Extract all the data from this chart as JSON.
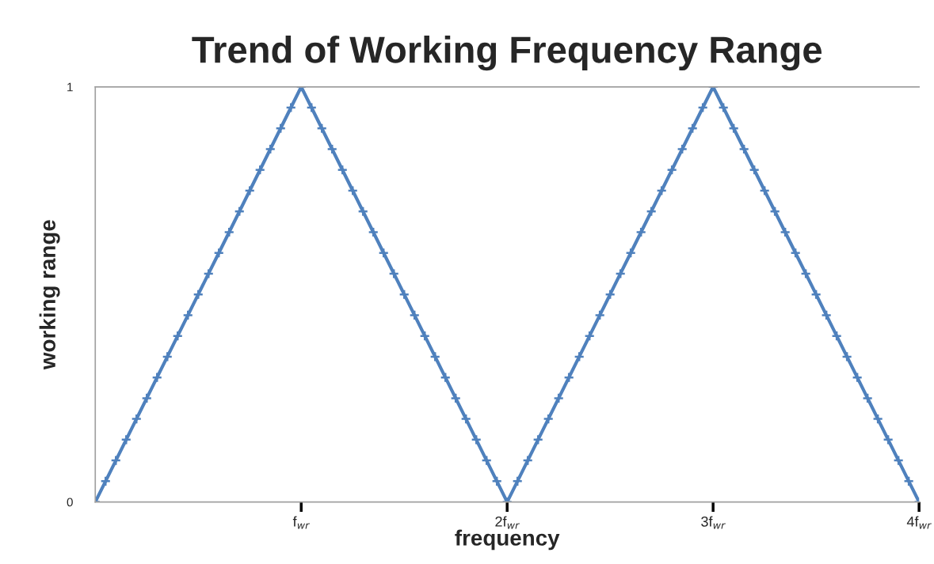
{
  "chart_data": {
    "type": "line",
    "title": "Trend of Working Frequency Range",
    "xlabel": "frequency",
    "ylabel": "working range",
    "x": [
      0,
      0.05,
      0.1,
      0.15,
      0.2,
      0.25,
      0.3,
      0.35,
      0.4,
      0.45,
      0.5,
      0.55,
      0.6,
      0.65,
      0.7,
      0.75,
      0.8,
      0.85,
      0.9,
      0.95,
      1,
      1.05,
      1.1,
      1.15,
      1.2,
      1.25,
      1.3,
      1.35,
      1.4,
      1.45,
      1.5,
      1.55,
      1.6,
      1.65,
      1.7,
      1.75,
      1.8,
      1.85,
      1.9,
      1.95,
      2,
      2.05,
      2.1,
      2.15,
      2.2,
      2.25,
      2.3,
      2.35,
      2.4,
      2.45,
      2.5,
      2.55,
      2.6,
      2.65,
      2.7,
      2.75,
      2.8,
      2.85,
      2.9,
      2.95,
      3,
      3.05,
      3.1,
      3.15,
      3.2,
      3.25,
      3.3,
      3.35,
      3.4,
      3.45,
      3.5,
      3.55,
      3.6,
      3.65,
      3.7,
      3.75,
      3.8,
      3.85,
      3.9,
      3.95,
      4
    ],
    "series": [
      {
        "color": "#4f81bd",
        "values": [
          0,
          0.05,
          0.1,
          0.15,
          0.2,
          0.25,
          0.3,
          0.35,
          0.4,
          0.45,
          0.5,
          0.55,
          0.6,
          0.65,
          0.7,
          0.75,
          0.8,
          0.85,
          0.9,
          0.95,
          1,
          0.95,
          0.9,
          0.85,
          0.8,
          0.75,
          0.7,
          0.65,
          0.6,
          0.55,
          0.5,
          0.45,
          0.4,
          0.35,
          0.3,
          0.25,
          0.2,
          0.15,
          0.1,
          0.05,
          0,
          0.05,
          0.1,
          0.15,
          0.2,
          0.25,
          0.3,
          0.35,
          0.4,
          0.45,
          0.5,
          0.55,
          0.6,
          0.65,
          0.7,
          0.75,
          0.8,
          0.85,
          0.9,
          0.95,
          1,
          0.95,
          0.9,
          0.85,
          0.8,
          0.75,
          0.7,
          0.65,
          0.6,
          0.55,
          0.5,
          0.45,
          0.4,
          0.35,
          0.3,
          0.25,
          0.2,
          0.15,
          0.1,
          0.05,
          0
        ]
      }
    ],
    "xlim": [
      0,
      4
    ],
    "xticks": [
      {
        "value": 1,
        "label": "f$_{wr}$"
      },
      {
        "value": 2,
        "label": "2f$_{wr}$"
      },
      {
        "value": 3,
        "label": "3f$_{wr}$"
      },
      {
        "value": 4,
        "label": "4f$_{wr}$"
      }
    ],
    "ylim": [
      0,
      1
    ],
    "yticks": [
      0,
      1
    ],
    "marker": "cross",
    "line_style": "solid"
  }
}
